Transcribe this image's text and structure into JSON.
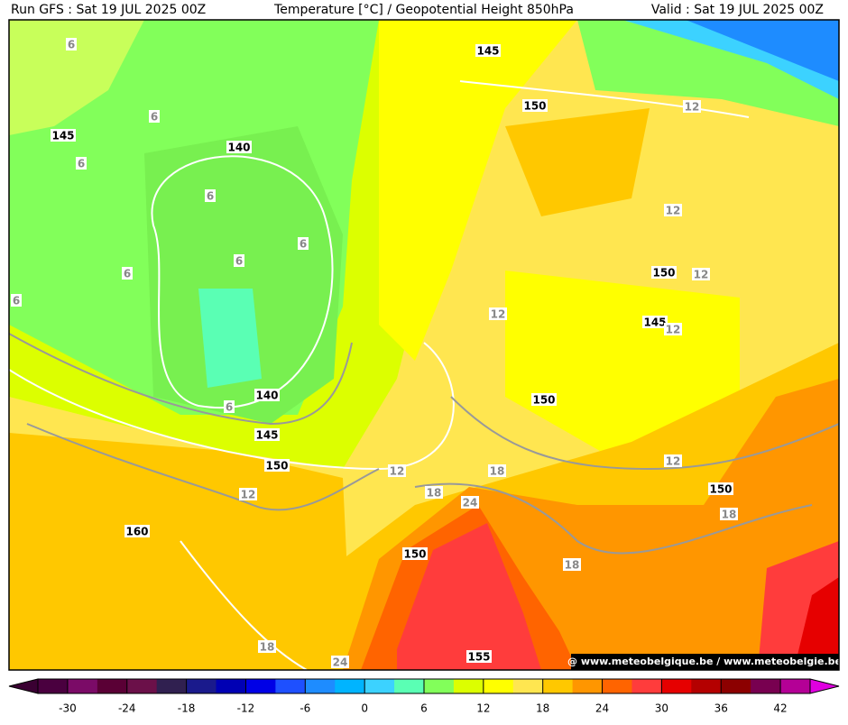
{
  "header": {
    "run": "Run GFS : Sat 19 JUL 2025 00Z",
    "title": "Temperature [°C] / Geopotential Height 850hPa",
    "valid": "Valid : Sat 19 JUL 2025 00Z"
  },
  "map": {
    "height_labels": [
      145,
      150,
      145,
      140,
      150,
      145,
      140,
      150,
      145,
      150,
      150,
      160,
      150,
      155
    ],
    "temperature_labels": [
      6,
      6,
      6,
      6,
      6,
      6,
      6,
      6,
      6,
      12,
      12,
      12,
      12,
      12,
      12,
      12,
      12,
      18,
      18,
      24,
      18,
      18,
      18,
      24
    ],
    "watermark": "@ www.meteobelgique.be / www.meteobelgie.be"
  },
  "colorbar": {
    "min": -33,
    "max": 45,
    "colors": [
      "#4a003f",
      "#7b0b67",
      "#5a0035",
      "#6b1049",
      "#302050",
      "#1a1a8c",
      "#0000b4",
      "#0000e6",
      "#1e50ff",
      "#1e8cff",
      "#00b4ff",
      "#3cd2ff",
      "#5affb4",
      "#82ff5a",
      "#dcff00",
      "#ffff00",
      "#ffe650",
      "#ffc800",
      "#ff9600",
      "#ff6400",
      "#ff3c3c",
      "#e60000",
      "#b40000",
      "#8c0000",
      "#780050",
      "#b40096"
    ],
    "under_color": "#3a0032",
    "over_color": "#e000e0",
    "ticks": [
      -30,
      -24,
      -18,
      -12,
      -6,
      0,
      6,
      12,
      18,
      24,
      30,
      36,
      42
    ]
  }
}
